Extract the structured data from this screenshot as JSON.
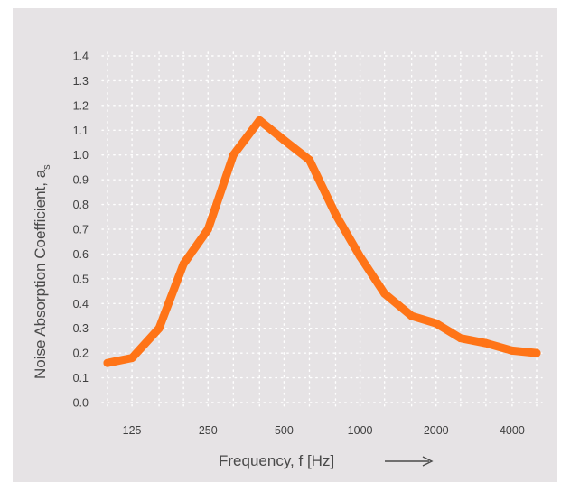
{
  "chart_data": {
    "type": "line",
    "title": "",
    "xlabel": "Frequency, f [Hz]",
    "ylabel": "Noise Absorption Coefficient, a",
    "ylabel_subscript": "s",
    "x_scale": "log",
    "x": [
      100,
      125,
      160,
      200,
      250,
      315,
      400,
      500,
      630,
      800,
      1000,
      1250,
      1600,
      2000,
      2500,
      3150,
      4000,
      5000
    ],
    "x_tick_values": [
      125,
      250,
      500,
      1000,
      2000,
      4000
    ],
    "x_tick_labels": [
      "125",
      "250",
      "500",
      "1000",
      "2000",
      "4000"
    ],
    "ylim": [
      0,
      1.4
    ],
    "y_tick_values": [
      0,
      0.1,
      0.2,
      0.3,
      0.4,
      0.5,
      0.6,
      0.7,
      0.8,
      0.9,
      1.0,
      1.1,
      1.2,
      1.3,
      1.4
    ],
    "y_tick_labels": [
      "0.0",
      "0.1",
      "0.2",
      "0.3",
      "0.4",
      "0.5",
      "0.6",
      "0.7",
      "0.8",
      "0.9",
      "1.0",
      "1.1",
      "1.2",
      "1.3",
      "1.4"
    ],
    "series": [
      {
        "values": [
          0.16,
          0.18,
          0.3,
          0.56,
          0.7,
          1.0,
          1.14,
          1.06,
          0.98,
          0.76,
          0.59,
          0.44,
          0.35,
          0.32,
          0.26,
          0.24,
          0.21,
          0.2
        ],
        "color": "#ff7417"
      }
    ],
    "grid": true,
    "grid_style": "dotted",
    "grid_color": "#ffffff",
    "background_color": "#e6e3e5",
    "text_color": "#3f3f3f"
  }
}
